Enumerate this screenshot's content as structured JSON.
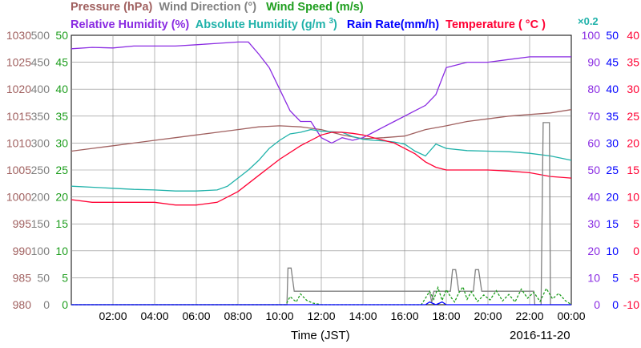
{
  "chart_data": {
    "type": "line",
    "date_label": "2016-11-20",
    "xlabel": "Time (JST)",
    "x_range": [
      "00:00",
      "24:00"
    ],
    "x_ticks": [
      "02:00",
      "04:00",
      "06:00",
      "08:00",
      "10:00",
      "12:00",
      "14:00",
      "16:00",
      "18:00",
      "20:00",
      "22:00",
      "00:00"
    ],
    "grid": true,
    "axes": {
      "pressure": {
        "label": "Pressure (hPa)",
        "color": "#a0605f",
        "range": [
          980,
          1030
        ],
        "ticks": [
          "980",
          "985",
          "990",
          "995",
          "1000",
          "1005",
          "1010",
          "1015",
          "1020",
          "1025",
          "1030"
        ]
      },
      "wind_direction": {
        "label": "Wind Direction (°)",
        "color": "#808080",
        "range": [
          0,
          500
        ],
        "ticks": [
          "0",
          "50",
          "100",
          "150",
          "200",
          "250",
          "300",
          "350",
          "400",
          "450",
          "500"
        ]
      },
      "wind_speed": {
        "label": "Wind Speed (m/s)",
        "color": "#1e9e1e",
        "range": [
          0,
          50
        ],
        "ticks": [
          "0",
          "5",
          "10",
          "15",
          "20",
          "25",
          "30",
          "35",
          "40",
          "45",
          "50"
        ]
      },
      "relative_humidity": {
        "label": "Relative Humidity (%)",
        "color": "#8a2be2",
        "range": [
          0,
          100
        ],
        "ticks": [
          "0",
          "10",
          "20",
          "30",
          "40",
          "50",
          "60",
          "70",
          "80",
          "90",
          "100"
        ]
      },
      "absolute_humidity": {
        "label": "Absolute Humidity (g/m",
        "label_sup": "3",
        "label_end": ")",
        "scale_note": "×0.2",
        "color": "#20b2aa",
        "range": [
          0,
          500
        ]
      },
      "rain_rate": {
        "label": "Rain Rate(mm/h)",
        "color": "#0000ff",
        "range": [
          0,
          50
        ],
        "ticks": [
          "0",
          "5",
          "10",
          "15",
          "20",
          "25",
          "30",
          "35",
          "40",
          "45",
          "50"
        ]
      },
      "temperature": {
        "label": "Temperature (",
        "label_unit": "°C",
        "label_end": ")",
        "color": "#ff0033",
        "range": [
          -10,
          40
        ],
        "ticks": [
          "-10",
          "-5",
          "0",
          "5",
          "10",
          "15",
          "20",
          "25",
          "30",
          "35",
          "40"
        ]
      }
    },
    "series": [
      {
        "name": "Pressure (hPa)",
        "axis": "pressure",
        "color": "#a0605f",
        "x": [
          0,
          1,
          2,
          3,
          4,
          5,
          6,
          7,
          8,
          9,
          10,
          11,
          12,
          13,
          14,
          15,
          16,
          17,
          18,
          19,
          20,
          21,
          22,
          23,
          24
        ],
        "y": [
          1008.5,
          1009,
          1009.5,
          1010,
          1010.5,
          1011,
          1011.5,
          1012,
          1012.5,
          1013,
          1013.2,
          1013,
          1012.5,
          1011.5,
          1010.8,
          1011,
          1011.3,
          1012.5,
          1013.2,
          1014,
          1014.5,
          1015,
          1015.3,
          1015.6,
          1016.2
        ]
      },
      {
        "name": "Relative Humidity (%)",
        "axis": "relative_humidity",
        "color": "#8a2be2",
        "x": [
          0,
          1,
          2,
          3,
          4,
          5,
          6,
          7,
          8,
          8.5,
          9,
          9.5,
          10,
          10.5,
          11,
          11.5,
          12,
          12.5,
          13,
          13.5,
          14,
          14.5,
          15,
          15.5,
          16,
          16.5,
          17,
          17.5,
          18,
          18.5,
          19,
          20,
          21,
          22,
          23,
          24
        ],
        "y": [
          95,
          95.5,
          95.3,
          96,
          96,
          96,
          96.5,
          97,
          97.5,
          97.5,
          93,
          88,
          80,
          72,
          68,
          68,
          62,
          60,
          62,
          61,
          62,
          64,
          66,
          68,
          70,
          72,
          74,
          78,
          88,
          89,
          90,
          90,
          91,
          92,
          92,
          92
        ]
      },
      {
        "name": "Absolute Humidity (g/m3)",
        "axis": "absolute_humidity",
        "color": "#20b2aa",
        "x": [
          0,
          1,
          2,
          3,
          4,
          5,
          6,
          7,
          7.5,
          8,
          8.5,
          9,
          9.5,
          10,
          10.5,
          11,
          11.5,
          12,
          12.5,
          13,
          13.5,
          14,
          14.5,
          15,
          15.5,
          16,
          16.5,
          17,
          17.5,
          18,
          19,
          20,
          21,
          22,
          23,
          24
        ],
        "y": [
          220,
          218,
          216,
          214,
          213,
          211,
          211,
          213,
          220,
          235,
          250,
          268,
          290,
          305,
          317,
          320,
          325,
          322,
          321,
          320,
          312,
          307,
          305,
          304,
          302,
          298,
          285,
          276,
          298,
          290,
          286,
          285,
          284,
          281,
          276,
          268
        ]
      },
      {
        "name": "Temperature (°C)",
        "axis": "temperature",
        "color": "#ff0033",
        "x": [
          0,
          1,
          2,
          3,
          4,
          5,
          6,
          7,
          8,
          9,
          10,
          11,
          12,
          12.5,
          13,
          13.5,
          14,
          14.5,
          15,
          15.5,
          16,
          16.5,
          17,
          17.5,
          18,
          19,
          20,
          21,
          22,
          23,
          24
        ],
        "y": [
          9.5,
          9,
          9,
          9,
          9,
          8.5,
          8.5,
          9,
          11,
          14,
          17,
          19.5,
          21.5,
          22,
          22,
          21.8,
          21.5,
          21,
          20.5,
          20,
          19,
          18,
          16.5,
          15.5,
          15,
          15,
          15,
          14.8,
          14.5,
          13.8,
          13.5
        ]
      },
      {
        "name": "Wind Direction (°)",
        "axis": "wind_direction",
        "color": "#808080",
        "x": [
          0,
          10.35,
          10.4,
          10.55,
          10.7,
          17.2,
          17.3,
          17.4,
          17.7,
          18.2,
          18.3,
          18.45,
          18.6,
          18.8,
          19.3,
          19.4,
          19.55,
          19.7,
          22.2,
          22.25,
          22.55,
          22.65,
          22.95,
          23.0,
          24
        ],
        "y": [
          0,
          0,
          68,
          68,
          25,
          25,
          4,
          25,
          25,
          25,
          65,
          65,
          25,
          25,
          25,
          65,
          65,
          25,
          25,
          0,
          0,
          338,
          338,
          0,
          0
        ]
      },
      {
        "name": "Wind Speed (m/s)",
        "axis": "wind_speed",
        "color": "#1e9e1e",
        "x": [
          0,
          10.3,
          10.5,
          10.8,
          11.0,
          11.3,
          11.6,
          12,
          16.8,
          17.0,
          17.2,
          17.4,
          17.6,
          17.8,
          18.0,
          18.2,
          18.4,
          18.6,
          18.8,
          19.0,
          19.2,
          19.5,
          19.8,
          20.1,
          20.4,
          20.7,
          21.0,
          21.3,
          21.6,
          21.9,
          22.2,
          22.5,
          22.8,
          23.1,
          23.4,
          23.7,
          24
        ],
        "y": [
          0,
          0,
          1.5,
          0.5,
          2.0,
          0.8,
          0.3,
          0,
          0,
          1.2,
          2.5,
          1.0,
          3.2,
          0.8,
          2.8,
          1.5,
          0.5,
          2.2,
          3.3,
          1.0,
          2.4,
          0.6,
          1.8,
          0.9,
          2.6,
          0.7,
          1.9,
          0.5,
          2.9,
          1.2,
          2.3,
          0.6,
          3.0,
          1.1,
          2.1,
          0.8,
          0
        ]
      },
      {
        "name": "Rain Rate(mm/h)",
        "axis": "rain_rate",
        "color": "#0000ff",
        "x": [
          0,
          17.0,
          17.2,
          17.5,
          17.8,
          18.0,
          24
        ],
        "y": [
          0,
          0,
          0.5,
          0,
          0.5,
          0,
          0
        ]
      }
    ]
  }
}
